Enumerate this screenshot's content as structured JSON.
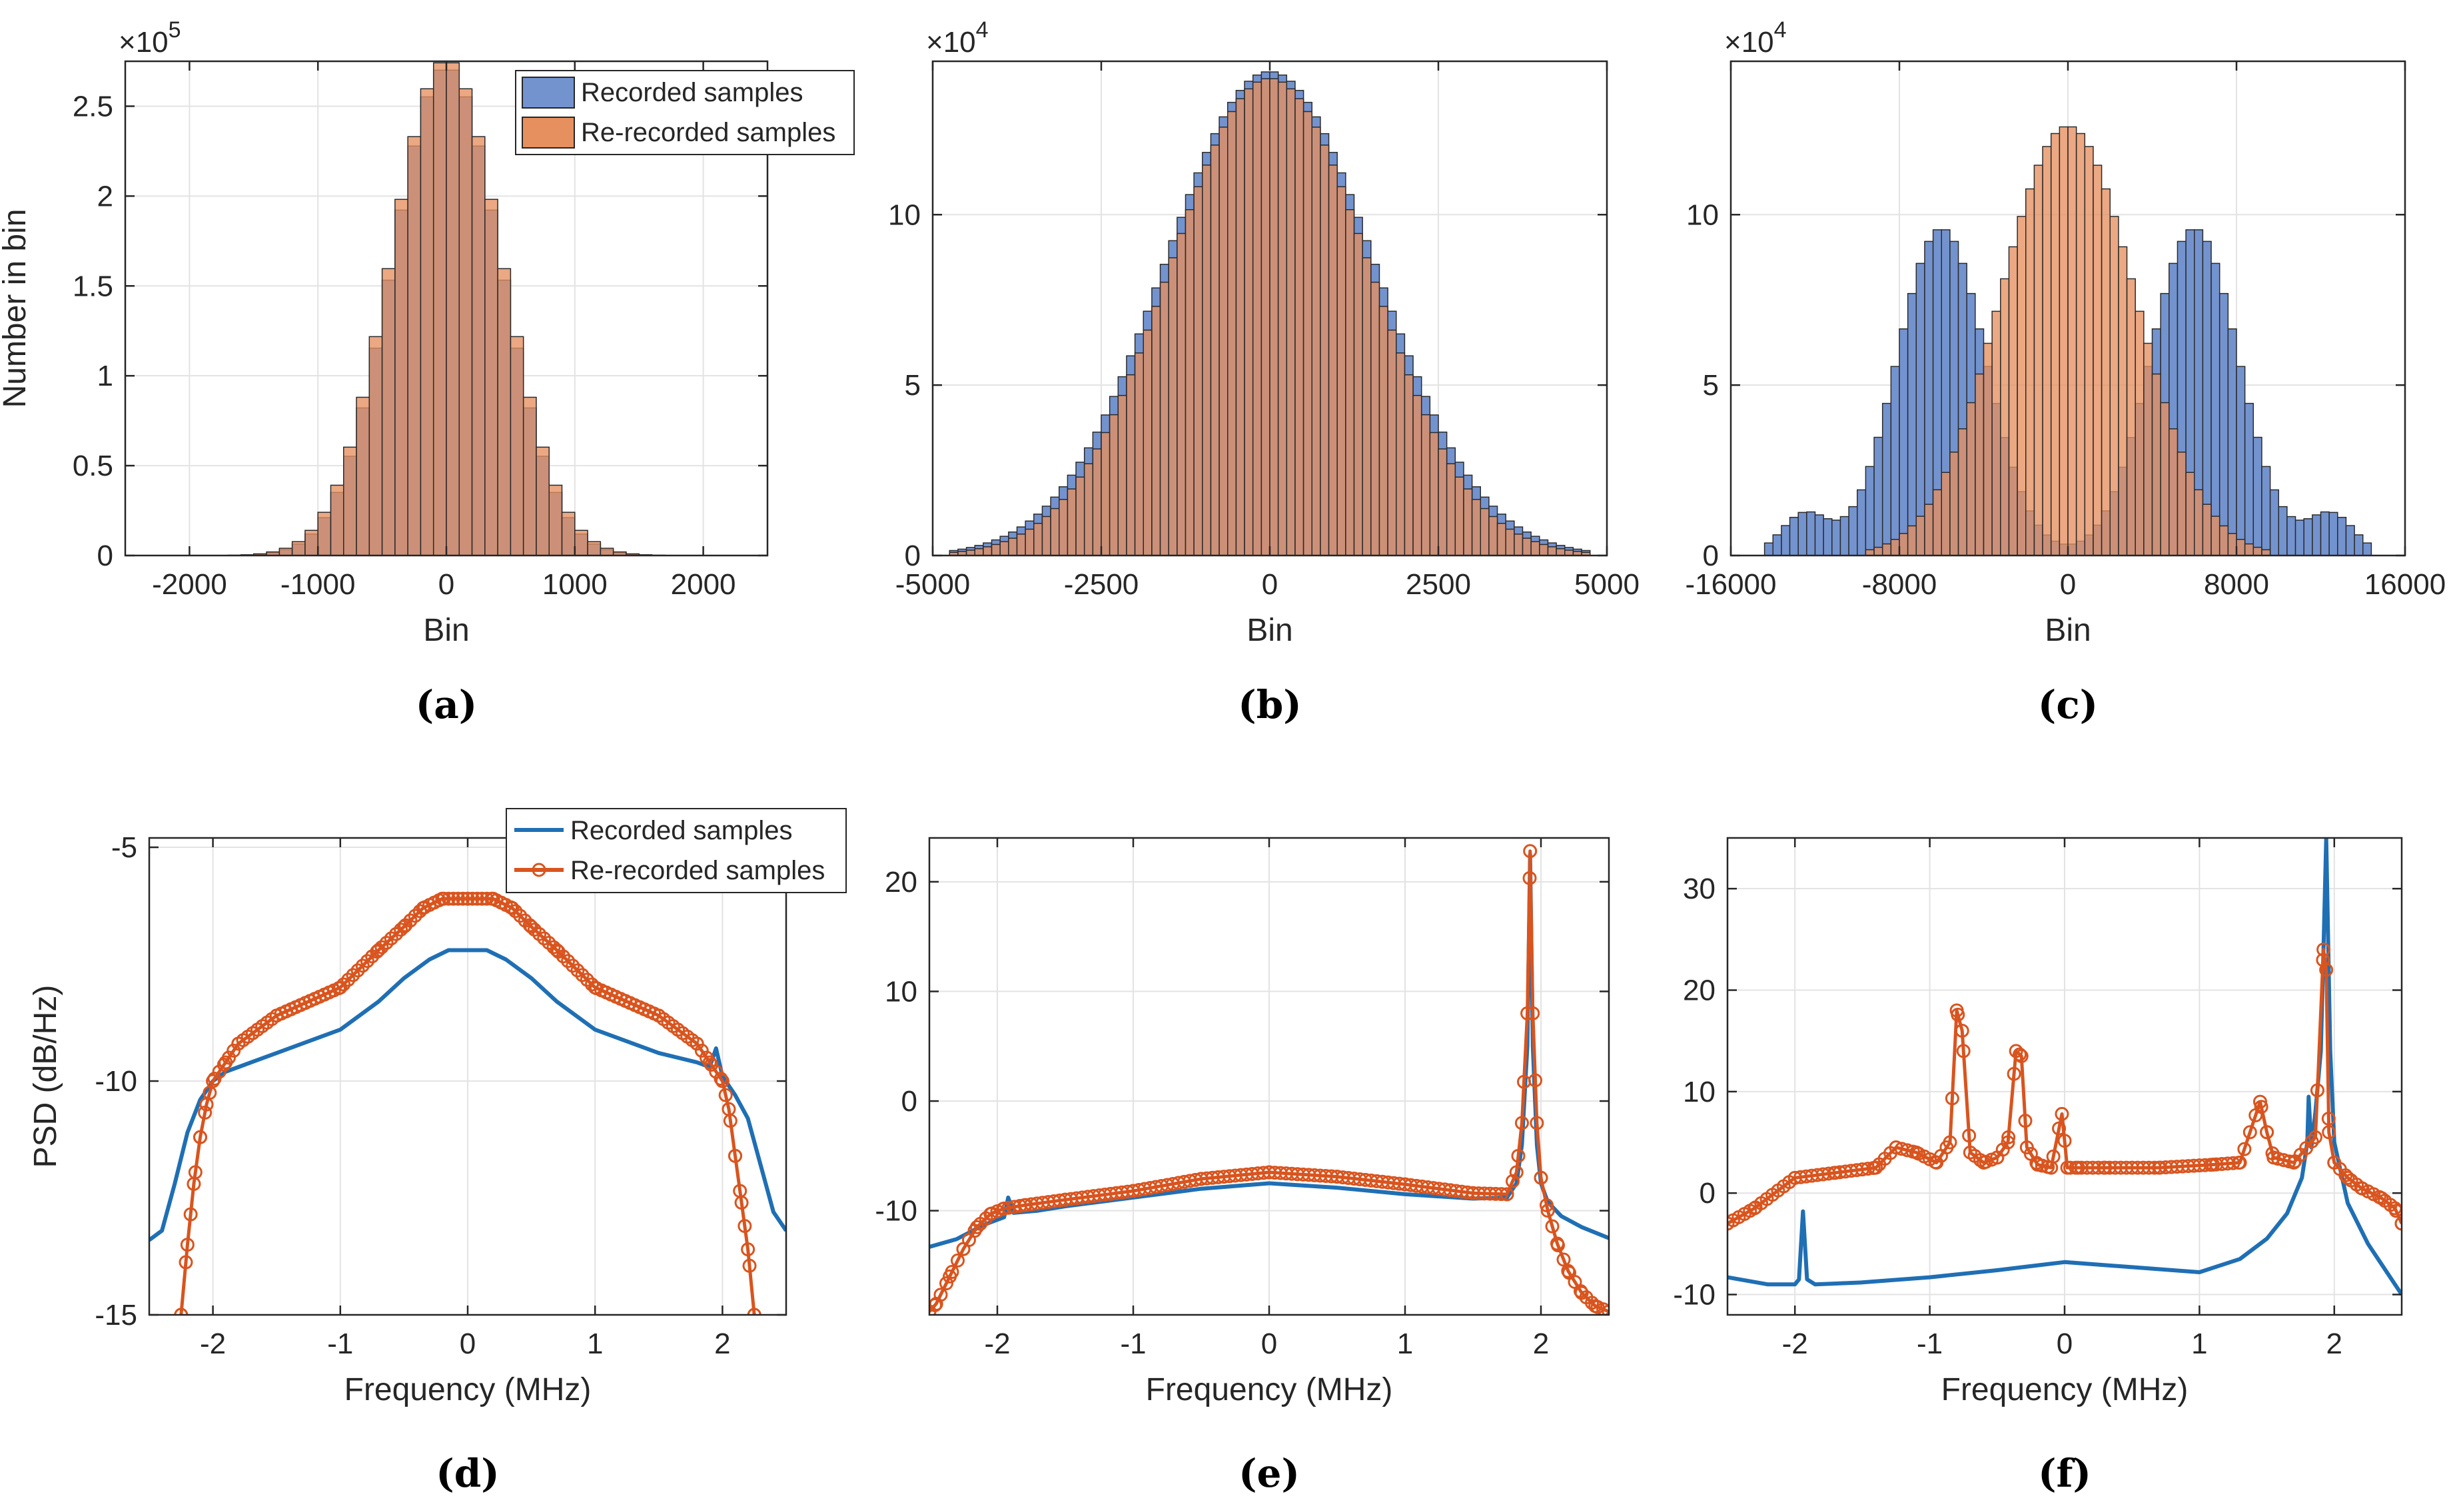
{
  "colors": {
    "recorded_hist": "#7393cf",
    "rerecorded_hist": "#e6905f",
    "overlap_hist": "#b5785f",
    "recorded_line": "#1f6fb4",
    "rerecorded_line": "#d9541e"
  },
  "chart_data": [
    {
      "panel": "a",
      "type": "bar",
      "caption": "(a)",
      "xlabel": "Bin",
      "ylabel": "Number in bin",
      "exponent": "×10^5",
      "exponent_base": "×10",
      "exponent_power": "5",
      "xlim": [
        -2500,
        2500
      ],
      "ylim": [
        0,
        2.75
      ],
      "xticks": [
        -2000,
        -1000,
        0,
        1000,
        2000
      ],
      "xtick_labels": [
        "-2000",
        "-1000",
        "0",
        "1000",
        "2000"
      ],
      "yticks": [
        0,
        0.5,
        1,
        1.5,
        2,
        2.5
      ],
      "ytick_labels": [
        "0",
        "0.5",
        "1",
        "1.5",
        "2",
        "2.5"
      ],
      "grid": true,
      "legend": {
        "position": "top-right",
        "entries": [
          "Recorded samples",
          "Re-recorded samples"
        ],
        "style": "patch"
      },
      "series": [
        {
          "name": "Recorded samples",
          "shape": "gaussian",
          "mean": 0,
          "sd": 420,
          "peak": 2.72,
          "support": [
            -2100,
            2100
          ],
          "bin_width": 100
        },
        {
          "name": "Re-recorded samples",
          "shape": "gaussian",
          "mean": 0,
          "sd": 430,
          "peak": 2.76,
          "support": [
            -2100,
            2100
          ],
          "bin_width": 100
        }
      ]
    },
    {
      "panel": "b",
      "type": "bar",
      "caption": "(b)",
      "xlabel": "Bin",
      "ylabel": "",
      "exponent": "×10^4",
      "exponent_base": "×10",
      "exponent_power": "4",
      "xlim": [
        -5000,
        5000
      ],
      "ylim": [
        0,
        14.5
      ],
      "xticks": [
        -5000,
        -2500,
        0,
        2500,
        5000
      ],
      "xtick_labels": [
        "-5000",
        "-2500",
        "0",
        "2500",
        "5000"
      ],
      "yticks": [
        0,
        5,
        10
      ],
      "ytick_labels": [
        "0",
        "5",
        "10"
      ],
      "grid": true,
      "series": [
        {
          "name": "Recorded samples",
          "shape": "gaussian",
          "mean": 0,
          "sd": 1550,
          "peak": 14.2,
          "support": [
            -4700,
            4700
          ],
          "bin_width": 125
        },
        {
          "name": "Re-recorded samples",
          "shape": "gaussian",
          "mean": 0,
          "sd": 1480,
          "peak": 14.0,
          "support": [
            -4700,
            4700
          ],
          "bin_width": 125
        }
      ]
    },
    {
      "panel": "c",
      "type": "bar",
      "caption": "(c)",
      "xlabel": "Bin",
      "ylabel": "",
      "exponent": "×10^4",
      "exponent_base": "×10",
      "exponent_power": "4",
      "xlim": [
        -16000,
        16000
      ],
      "ylim": [
        0,
        14.5
      ],
      "xticks": [
        -16000,
        -8000,
        0,
        8000,
        16000
      ],
      "xtick_labels": [
        "-16000",
        "-8000",
        "0",
        "8000",
        "16000"
      ],
      "yticks": [
        0,
        5,
        10
      ],
      "ytick_labels": [
        "0",
        "5",
        "10"
      ],
      "grid": true,
      "series": [
        {
          "name": "Recorded samples",
          "shape": "bimodal",
          "mean": 0,
          "peaks": [
            [
              -6000,
              2100,
              9.6
            ],
            [
              6000,
              2100,
              9.6
            ],
            [
              -12500,
              1100,
              1.2
            ],
            [
              12500,
              1100,
              1.2
            ]
          ],
          "support": [
            -14500,
            14500
          ],
          "bin_width": 400
        },
        {
          "name": "Re-recorded samples",
          "shape": "gaussian",
          "mean": 0,
          "sd": 3200,
          "peak": 12.6,
          "support": [
            -9500,
            9500
          ],
          "bin_width": 400
        }
      ]
    },
    {
      "panel": "d",
      "type": "line",
      "caption": "(d)",
      "xlabel": "Frequency (MHz)",
      "ylabel": "PSD (dB/Hz)",
      "xlim": [
        -2.5,
        2.5
      ],
      "ylim": [
        -15,
        -4.8
      ],
      "xticks": [
        -2,
        -1,
        0,
        1,
        2
      ],
      "xtick_labels": [
        "-2",
        "-1",
        "0",
        "1",
        "2"
      ],
      "yticks": [
        -15,
        -10,
        -5
      ],
      "ytick_labels": [
        "-15",
        "-10",
        "-5"
      ],
      "grid": true,
      "legend": {
        "position": "top-right",
        "entries": [
          "Recorded samples",
          "Re-recorded samples"
        ],
        "style": "line"
      },
      "series": [
        {
          "name": "Recorded samples",
          "x": [
            -2.5,
            -2.4,
            -2.3,
            -2.2,
            -2.1,
            -2.0,
            -1.9,
            -1.8,
            -1.5,
            -1.0,
            -0.7,
            -0.5,
            -0.3,
            -0.15,
            0,
            0.15,
            0.3,
            0.5,
            0.7,
            1.0,
            1.5,
            1.8,
            1.9,
            1.95,
            2.0,
            2.1,
            2.2,
            2.3,
            2.4,
            2.5
          ],
          "y": [
            -13.4,
            -13.2,
            -12.2,
            -11.1,
            -10.4,
            -10.0,
            -9.8,
            -9.7,
            -9.4,
            -8.9,
            -8.3,
            -7.8,
            -7.4,
            -7.2,
            -7.2,
            -7.2,
            -7.4,
            -7.8,
            -8.3,
            -8.9,
            -9.4,
            -9.6,
            -9.7,
            -9.3,
            -9.9,
            -10.3,
            -10.8,
            -11.8,
            -12.8,
            -13.2
          ]
        },
        {
          "name": "Re-recorded samples",
          "x": [
            -2.25,
            -2.2,
            -2.15,
            -2.1,
            -2.05,
            -2.0,
            -1.9,
            -1.8,
            -1.5,
            -1.0,
            -0.7,
            -0.5,
            -0.35,
            -0.2,
            0,
            0.2,
            0.35,
            0.5,
            0.7,
            1.0,
            1.5,
            1.8,
            1.9,
            2.0,
            2.05,
            2.1,
            2.15,
            2.2,
            2.25
          ],
          "y": [
            -15.0,
            -13.5,
            -12.2,
            -11.2,
            -10.5,
            -10.0,
            -9.6,
            -9.2,
            -8.6,
            -8.0,
            -7.2,
            -6.7,
            -6.3,
            -6.1,
            -6.1,
            -6.1,
            -6.3,
            -6.7,
            -7.2,
            -8.0,
            -8.6,
            -9.2,
            -9.6,
            -10.0,
            -10.6,
            -11.6,
            -12.6,
            -13.6,
            -15.0
          ]
        }
      ]
    },
    {
      "panel": "e",
      "type": "line",
      "caption": "(e)",
      "xlabel": "Frequency (MHz)",
      "ylabel": "",
      "xlim": [
        -2.5,
        2.5
      ],
      "ylim": [
        -19.5,
        24
      ],
      "xticks": [
        -2,
        -1,
        0,
        1,
        2
      ],
      "xtick_labels": [
        "-2",
        "-1",
        "0",
        "1",
        "2"
      ],
      "yticks": [
        -10,
        0,
        10,
        20
      ],
      "ytick_labels": [
        "-10",
        "0",
        "10",
        "20"
      ],
      "grid": true,
      "series": [
        {
          "name": "Recorded samples",
          "x": [
            -2.5,
            -2.3,
            -2.1,
            -1.95,
            -1.92,
            -1.88,
            -1.7,
            -1.5,
            -1.0,
            -0.5,
            0,
            0.5,
            1.0,
            1.5,
            1.75,
            1.82,
            1.86,
            1.9,
            1.92,
            1.94,
            1.97,
            2.0,
            2.05,
            2.15,
            2.3,
            2.5
          ],
          "y": [
            -13.3,
            -12.6,
            -11.3,
            -10.6,
            -8.8,
            -10.2,
            -10.0,
            -9.6,
            -8.8,
            -8.0,
            -7.5,
            -7.9,
            -8.5,
            -8.9,
            -8.8,
            -7.5,
            -4.0,
            5.0,
            22.5,
            5.0,
            -4.0,
            -7.5,
            -9.2,
            -10.5,
            -11.5,
            -12.5
          ]
        },
        {
          "name": "Re-recorded samples",
          "x": [
            -2.5,
            -2.45,
            -2.35,
            -2.25,
            -2.15,
            -2.05,
            -1.95,
            -1.8,
            -1.5,
            -1.0,
            -0.5,
            0,
            0.5,
            1.0,
            1.5,
            1.75,
            1.82,
            1.86,
            1.9,
            1.92,
            1.94,
            1.97,
            2.0,
            2.05,
            2.12,
            2.2,
            2.3,
            2.4,
            2.5
          ],
          "y": [
            -19.2,
            -18.5,
            -16.0,
            -13.5,
            -11.5,
            -10.3,
            -9.8,
            -9.5,
            -9.0,
            -8.2,
            -7.1,
            -6.5,
            -6.9,
            -7.6,
            -8.4,
            -8.5,
            -6.5,
            -2.0,
            8.0,
            22.8,
            8.0,
            -2.0,
            -7.0,
            -10.0,
            -13.0,
            -15.5,
            -17.5,
            -18.7,
            -19.2
          ]
        }
      ]
    },
    {
      "panel": "f",
      "type": "line",
      "caption": "(f)",
      "xlabel": "Frequency (MHz)",
      "ylabel": "",
      "xlim": [
        -2.5,
        2.5
      ],
      "ylim": [
        -12,
        35
      ],
      "xticks": [
        -2,
        -1,
        0,
        1,
        2
      ],
      "xtick_labels": [
        "-2",
        "-1",
        "0",
        "1",
        "2"
      ],
      "yticks": [
        -10,
        0,
        10,
        20,
        30
      ],
      "ytick_labels": [
        "-10",
        "0",
        "10",
        "20",
        "30"
      ],
      "grid": true,
      "series": [
        {
          "name": "Recorded samples",
          "x": [
            -2.5,
            -2.2,
            -2.0,
            -1.97,
            -1.94,
            -1.91,
            -1.85,
            -1.5,
            -1.0,
            -0.5,
            0,
            0.5,
            1.0,
            1.3,
            1.5,
            1.65,
            1.76,
            1.8,
            1.81,
            1.83,
            1.86,
            1.9,
            1.92,
            1.94,
            1.97,
            2.0,
            2.1,
            2.25,
            2.5
          ],
          "y": [
            -8.3,
            -9.0,
            -9.0,
            -8.5,
            -1.8,
            -8.5,
            -9.0,
            -8.8,
            -8.3,
            -7.6,
            -6.8,
            -7.3,
            -7.8,
            -6.5,
            -4.5,
            -2.0,
            1.5,
            5.0,
            9.5,
            4.5,
            8.0,
            14.0,
            24.0,
            35.0,
            14.0,
            5.0,
            -1.0,
            -5.0,
            -10.0
          ]
        },
        {
          "name": "Re-recorded samples",
          "x": [
            -2.5,
            -2.3,
            -2.0,
            -1.7,
            -1.4,
            -1.25,
            -1.1,
            -0.95,
            -0.85,
            -0.8,
            -0.76,
            -0.7,
            -0.6,
            -0.5,
            -0.42,
            -0.36,
            -0.32,
            -0.28,
            -0.2,
            -0.1,
            -0.02,
            0.02,
            0.1,
            0.3,
            0.7,
            1.1,
            1.3,
            1.45,
            1.5,
            1.55,
            1.7,
            1.86,
            1.92,
            1.94,
            1.96,
            2.0,
            2.1,
            2.2,
            2.35,
            2.45,
            2.5
          ],
          "y": [
            -3.0,
            -1.5,
            1.5,
            2.0,
            2.5,
            4.5,
            4.0,
            3.0,
            5.0,
            18.0,
            16.0,
            4.0,
            3.0,
            3.5,
            5.0,
            14.0,
            13.5,
            4.5,
            2.8,
            2.5,
            7.8,
            2.5,
            2.5,
            2.5,
            2.5,
            2.8,
            3.0,
            9.0,
            6.0,
            3.5,
            3.0,
            5.5,
            24.0,
            22.0,
            6.0,
            3.0,
            1.5,
            0.5,
            -0.5,
            -1.5,
            -3.0
          ]
        }
      ]
    }
  ]
}
